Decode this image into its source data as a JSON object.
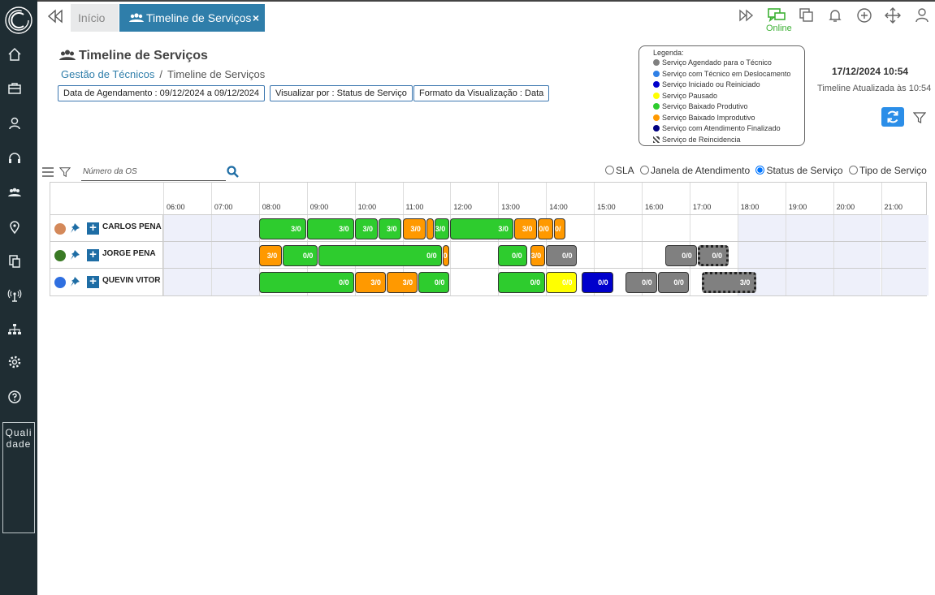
{
  "app": {
    "tabs": {
      "home": "Início",
      "active": "Timeline de Serviços",
      "close": "×"
    },
    "status": "Online",
    "quality_tab": "Qualidade"
  },
  "header": {
    "title": "Timeline de Serviços",
    "breadcrumb": {
      "parent": "Gestão de Técnicos",
      "separator": "/",
      "current": "Timeline de Serviços"
    },
    "chips": [
      "Data de Agendamento : 09/12/2024 a 09/12/2024",
      "Visualizar por : Status de Serviço",
      "Formato da Visualização : Data"
    ],
    "datetime": "17/12/2024 10:54",
    "updated": "Timeline Atualizada às 10:54"
  },
  "legend": {
    "title": "Legenda:",
    "items": [
      {
        "label": "Serviço Agendado para o Técnico",
        "color": "#808080"
      },
      {
        "label": "Serviço com Técnico em Deslocamento",
        "color": "#2f80e6"
      },
      {
        "label": "Serviço Iniciado ou Reiniciado",
        "color": "#0000cc"
      },
      {
        "label": "Serviço Pausado",
        "color": "#ffff00"
      },
      {
        "label": "Serviço Baixado Produtivo",
        "color": "#2ecc2e"
      },
      {
        "label": "Serviço Baixado Improdutivo",
        "color": "#ff9900"
      },
      {
        "label": "Serviço com Atendimento Finalizado",
        "color": "#000080"
      },
      {
        "label": "Serviço de Reincidencia",
        "color": "pattern"
      }
    ]
  },
  "search": {
    "placeholder": "Número da OS"
  },
  "view_options": {
    "selected": "Status de Serviço",
    "options": [
      "SLA",
      "Janela de Atendimento",
      "Status de Serviço",
      "Tipo de Serviço"
    ]
  },
  "timeline": {
    "hours": [
      "06:00",
      "07:00",
      "08:00",
      "09:00",
      "10:00",
      "11:00",
      "12:00",
      "13:00",
      "14:00",
      "15:00",
      "16:00",
      "17:00",
      "18:00",
      "19:00",
      "20:00",
      "21:00"
    ],
    "start_hour": 6,
    "technicians": [
      {
        "name": "CARLOS PENA",
        "color": "#d4895a",
        "bars": [
          {
            "start": "08:00",
            "end": "09:00",
            "label": "3/0",
            "status": "produtivo"
          },
          {
            "start": "09:00",
            "end": "10:00",
            "label": "3/0",
            "status": "produtivo"
          },
          {
            "start": "10:00",
            "end": "10:30",
            "label": "3/0",
            "status": "produtivo"
          },
          {
            "start": "10:30",
            "end": "11:00",
            "label": "3/0",
            "status": "produtivo"
          },
          {
            "start": "11:00",
            "end": "11:30",
            "label": "3/0",
            "status": "improdutivo"
          },
          {
            "start": "11:30",
            "end": "11:40",
            "label": "",
            "status": "improdutivo"
          },
          {
            "start": "11:40",
            "end": "12:00",
            "label": "3/0",
            "status": "produtivo"
          },
          {
            "start": "12:00",
            "end": "13:20",
            "label": "3/0",
            "status": "produtivo"
          },
          {
            "start": "13:20",
            "end": "13:50",
            "label": "3/0",
            "status": "improdutivo"
          },
          {
            "start": "13:50",
            "end": "14:10",
            "label": "0/0",
            "status": "improdutivo"
          },
          {
            "start": "14:10",
            "end": "14:25",
            "label": "0/",
            "status": "improdutivo"
          }
        ]
      },
      {
        "name": "JORGE PENA",
        "color": "#3a7a25",
        "bars": [
          {
            "start": "08:00",
            "end": "08:30",
            "label": "3/0",
            "status": "improdutivo"
          },
          {
            "start": "08:30",
            "end": "09:15",
            "label": "0/0",
            "status": "produtivo"
          },
          {
            "start": "09:15",
            "end": "11:50",
            "label": "0/0",
            "status": "produtivo"
          },
          {
            "start": "11:50",
            "end": "12:00",
            "label": "0",
            "status": "improdutivo"
          },
          {
            "start": "13:00",
            "end": "13:37",
            "label": "0/0",
            "status": "produtivo"
          },
          {
            "start": "13:40",
            "end": "14:00",
            "label": "3/0",
            "status": "improdutivo"
          },
          {
            "start": "14:00",
            "end": "14:40",
            "label": "0/0",
            "status": "agendado"
          },
          {
            "start": "16:30",
            "end": "17:10",
            "label": "0/0",
            "status": "agendado"
          },
          {
            "start": "17:10",
            "end": "17:50",
            "label": "0/0",
            "status": "reincidencia"
          }
        ]
      },
      {
        "name": "QUEVIN VITOR",
        "color": "#2f6fe0",
        "bars": [
          {
            "start": "08:00",
            "end": "10:00",
            "label": "0/0",
            "status": "produtivo"
          },
          {
            "start": "10:00",
            "end": "10:40",
            "label": "3/0",
            "status": "improdutivo"
          },
          {
            "start": "10:40",
            "end": "11:20",
            "label": "3/0",
            "status": "improdutivo"
          },
          {
            "start": "11:20",
            "end": "12:00",
            "label": "0/0",
            "status": "produtivo"
          },
          {
            "start": "13:00",
            "end": "14:00",
            "label": "0/0",
            "status": "produtivo"
          },
          {
            "start": "14:00",
            "end": "14:40",
            "label": "0/0",
            "status": "pausado"
          },
          {
            "start": "14:45",
            "end": "15:25",
            "label": "0/0",
            "status": "iniciado"
          },
          {
            "start": "15:40",
            "end": "16:20",
            "label": "0/0",
            "status": "agendado"
          },
          {
            "start": "16:20",
            "end": "17:00",
            "label": "0/0",
            "status": "agendado"
          },
          {
            "start": "17:15",
            "end": "18:25",
            "label": "3/0",
            "status": "reincidencia"
          }
        ]
      }
    ],
    "status_colors": {
      "produtivo": "#2ecc2e",
      "improdutivo": "#ff9900",
      "agendado": "#808080",
      "pausado": "#ffff00",
      "iniciado": "#0000cc",
      "reincidencia": "#808080"
    }
  }
}
